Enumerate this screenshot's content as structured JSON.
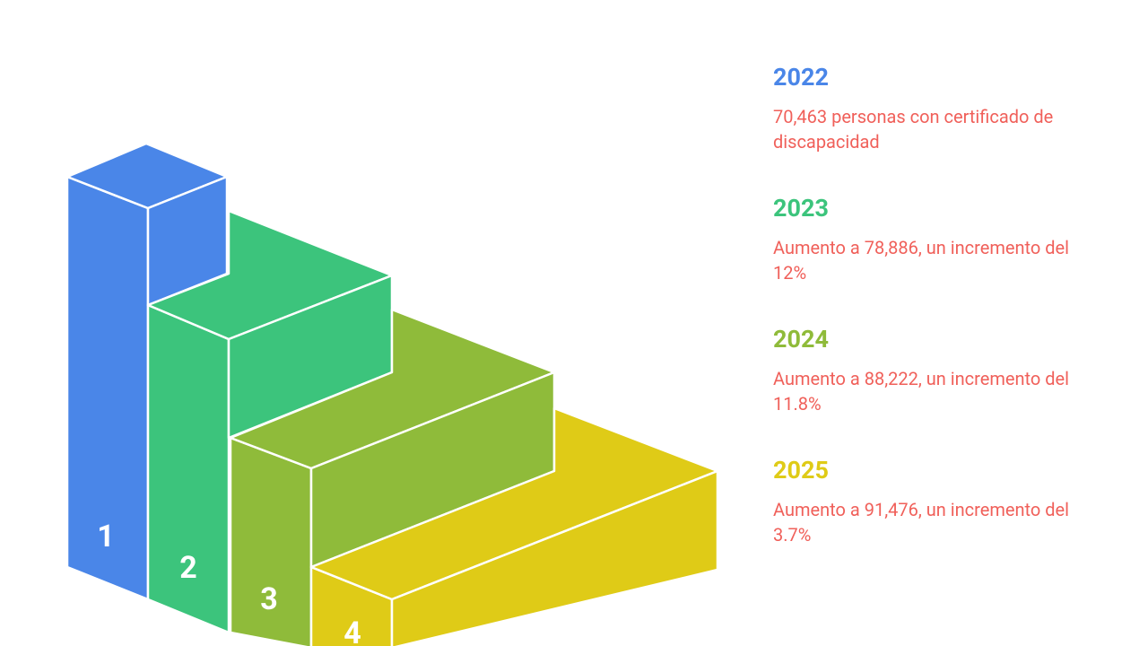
{
  "steps": [
    {
      "number": "1",
      "year": "2022",
      "text": "70,463 personas con certificado de discapacidad"
    },
    {
      "number": "2",
      "year": "2023",
      "text": "Aumento a 78,886, un incremento del 12%"
    },
    {
      "number": "3",
      "year": "2024",
      "text": "Aumento a 88,222, un incremento del 11.8%"
    },
    {
      "number": "4",
      "year": "2025",
      "text": "Aumento a 91,476, un incremento del 3.7%"
    }
  ]
}
